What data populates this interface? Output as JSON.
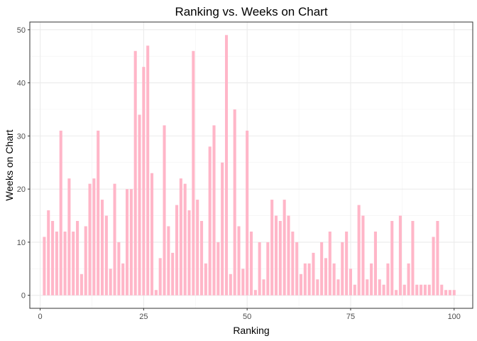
{
  "chart_data": {
    "type": "bar",
    "title": "Ranking vs. Weeks on Chart",
    "xlabel": "Ranking",
    "ylabel": "Weeks on Chart",
    "xlim": [
      -2.5,
      104.5
    ],
    "ylim": [
      -2.45,
      51.45
    ],
    "x_ticks": [
      0,
      25,
      50,
      75,
      100
    ],
    "y_ticks": [
      0,
      10,
      20,
      30,
      40,
      50
    ],
    "x_tick_labels": [
      "0",
      "25",
      "50",
      "75",
      "100"
    ],
    "y_tick_labels": [
      "0",
      "10",
      "20",
      "30",
      "40",
      "50"
    ],
    "grid": true,
    "bar_color": "#FFB6C8",
    "x": [
      1,
      2,
      3,
      4,
      5,
      6,
      7,
      8,
      9,
      10,
      11,
      12,
      13,
      14,
      15,
      16,
      17,
      18,
      19,
      20,
      21,
      22,
      23,
      24,
      25,
      26,
      27,
      28,
      29,
      30,
      31,
      32,
      33,
      34,
      35,
      36,
      37,
      38,
      39,
      40,
      41,
      42,
      43,
      44,
      45,
      46,
      47,
      48,
      49,
      50,
      51,
      52,
      53,
      54,
      55,
      56,
      57,
      58,
      59,
      60,
      61,
      62,
      63,
      64,
      65,
      66,
      67,
      68,
      69,
      70,
      71,
      72,
      73,
      74,
      75,
      76,
      77,
      78,
      79,
      80,
      81,
      82,
      83,
      84,
      85,
      86,
      87,
      88,
      89,
      90,
      91,
      92,
      93,
      94,
      95,
      96,
      97,
      98,
      99,
      100
    ],
    "values": [
      11,
      16,
      14,
      12,
      31,
      12,
      22,
      12,
      14,
      4,
      13,
      21,
      22,
      31,
      18,
      15,
      5,
      21,
      10,
      6,
      20,
      20,
      46,
      34,
      43,
      47,
      23,
      1,
      7,
      32,
      13,
      8,
      17,
      22,
      21,
      16,
      46,
      18,
      14,
      6,
      28,
      32,
      10,
      25,
      49,
      4,
      35,
      13,
      5,
      31,
      12,
      1,
      10,
      3,
      10,
      18,
      15,
      14,
      18,
      15,
      12,
      10,
      4,
      6,
      6,
      8,
      3,
      10,
      7,
      12,
      6,
      3,
      10,
      12,
      5,
      2,
      17,
      15,
      3,
      6,
      12,
      3,
      2,
      6,
      14,
      1,
      15,
      2,
      6,
      14,
      2,
      2,
      2,
      2,
      11,
      14,
      2,
      1,
      1,
      1
    ]
  }
}
